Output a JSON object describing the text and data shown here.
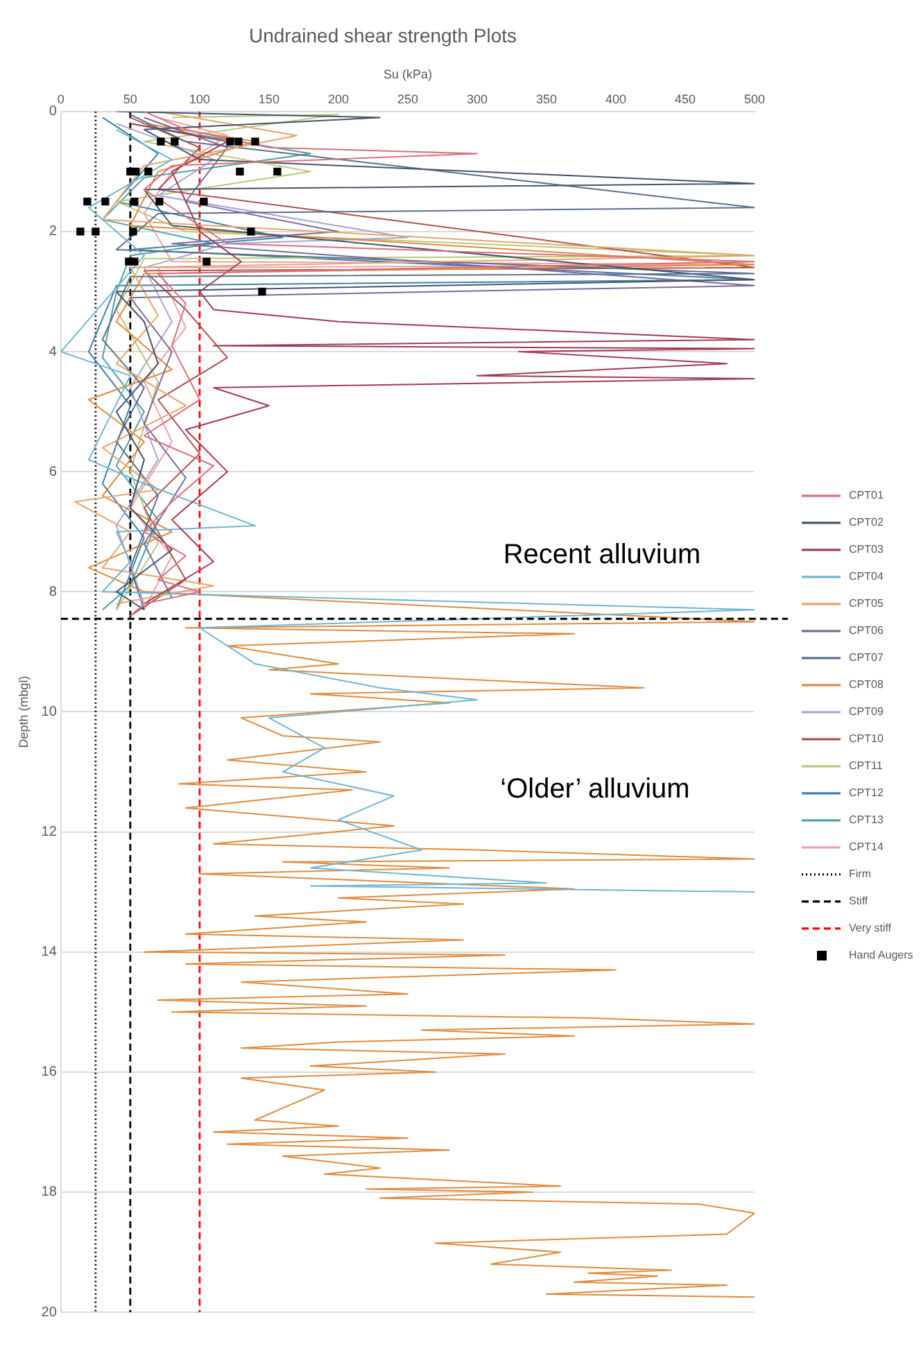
{
  "chart_data": {
    "type": "line",
    "title": "Undrained shear strength Plots",
    "xlabel": "Su (kPa)",
    "ylabel": "Depth (mbgl)",
    "xlim": [
      0,
      500
    ],
    "xticks": [
      0,
      50,
      100,
      150,
      200,
      250,
      300,
      350,
      400,
      450,
      500
    ],
    "ylim": [
      20,
      0
    ],
    "yticks": [
      0,
      2,
      4,
      6,
      8,
      10,
      12,
      14,
      16,
      18,
      20
    ],
    "grid": "y",
    "legend": "right",
    "series": [
      {
        "name": "CPT01",
        "color": "#d9707a",
        "x": [
          60,
          90,
          150,
          300,
          80,
          60,
          120,
          500,
          70,
          90,
          80,
          100,
          60,
          110,
          80,
          60,
          90,
          70,
          100,
          60,
          50
        ],
        "values": [
          0,
          0.3,
          0.6,
          0.7,
          0.9,
          1.3,
          2.2,
          2.5,
          2.7,
          3.2,
          3.9,
          4.8,
          5.4,
          5.9,
          6.5,
          7.0,
          7.4,
          7.8,
          8.0,
          8.2,
          8.4
        ]
      },
      {
        "name": "CPT02",
        "color": "#44546a",
        "x": [
          40,
          230,
          60,
          100,
          500,
          60,
          80,
          500,
          40,
          60,
          70,
          40,
          60,
          50,
          80,
          40,
          60
        ],
        "values": [
          0,
          0.1,
          0.3,
          0.8,
          1.2,
          1.3,
          1.9,
          2.8,
          3.0,
          3.5,
          4.2,
          5.0,
          5.8,
          6.6,
          7.3,
          8.0,
          8.3
        ]
      },
      {
        "name": "CPT03",
        "color": "#a23b52",
        "x": [
          50,
          120,
          80,
          100,
          130,
          100,
          110,
          200,
          500,
          110,
          500,
          330,
          480,
          300,
          500,
          110,
          150,
          90,
          120,
          80,
          110,
          60
        ],
        "values": [
          0.2,
          0.5,
          1.0,
          2.0,
          2.5,
          3.0,
          3.3,
          3.5,
          3.8,
          3.9,
          3.95,
          4.0,
          4.2,
          4.4,
          4.45,
          4.6,
          4.9,
          5.3,
          6.0,
          6.8,
          7.5,
          8.2
        ]
      },
      {
        "name": "CPT04",
        "color": "#6fb5d1",
        "x": [
          40,
          80,
          20,
          60,
          30,
          0,
          50,
          20,
          60,
          140,
          40,
          50,
          30,
          500,
          100,
          140,
          230,
          300,
          150,
          190,
          160,
          240,
          200,
          260,
          180,
          350,
          180,
          500
        ],
        "values": [
          0.3,
          0.8,
          1.6,
          2.4,
          3.2,
          4.0,
          4.4,
          5.8,
          6.2,
          6.9,
          7.0,
          7.5,
          8.0,
          8.3,
          8.6,
          9.2,
          9.6,
          9.8,
          10.1,
          10.6,
          11.0,
          11.4,
          11.8,
          12.3,
          12.6,
          12.85,
          12.9,
          13.0
        ]
      },
      {
        "name": "CPT05",
        "color": "#e8a46a",
        "x": [
          70,
          170,
          60,
          30,
          500,
          50,
          70,
          40,
          90,
          30,
          70,
          10,
          50,
          30,
          110,
          40
        ],
        "values": [
          0,
          0.4,
          0.9,
          1.8,
          2.4,
          2.6,
          3.4,
          4.2,
          4.9,
          5.6,
          6.3,
          6.5,
          7.0,
          7.6,
          7.9,
          8.2
        ]
      },
      {
        "name": "CPT06",
        "color": "#7b6a9a",
        "x": [
          60,
          120,
          90,
          200,
          80,
          500,
          50,
          80,
          60,
          90,
          60,
          80
        ],
        "values": [
          0.1,
          0.6,
          1.5,
          2.0,
          2.2,
          2.9,
          3.1,
          4.0,
          5.2,
          6.1,
          7.2,
          8.1
        ]
      },
      {
        "name": "CPT07",
        "color": "#5a6e8c",
        "x": [
          50,
          90,
          500,
          70,
          40,
          500,
          50,
          30,
          60,
          40,
          70,
          50,
          60
        ],
        "values": [
          0.05,
          0.5,
          1.6,
          1.7,
          2.3,
          2.7,
          2.75,
          3.8,
          4.6,
          5.5,
          6.4,
          7.6,
          8.3
        ]
      },
      {
        "name": "CPT08",
        "color": "#e08a3c",
        "x": [
          60,
          140,
          70,
          50,
          500,
          60,
          40,
          80,
          20,
          60,
          30,
          80,
          20,
          60,
          500,
          90,
          370,
          120,
          200,
          150,
          420,
          180,
          280,
          130,
          160,
          230,
          120,
          220,
          85,
          210,
          90,
          240,
          110,
          300,
          500,
          160,
          280,
          100,
          370,
          200,
          290,
          140,
          220,
          90,
          290,
          60,
          320,
          90,
          400,
          130,
          250,
          70,
          220,
          80,
          380,
          500,
          260,
          370,
          200,
          130,
          320,
          180,
          270,
          130,
          190,
          160,
          140,
          200,
          110,
          250,
          120,
          280,
          160,
          230,
          190,
          360,
          220,
          340,
          230,
          460,
          500,
          480,
          270,
          360,
          310,
          440,
          380,
          430,
          370,
          480,
          350,
          500
        ],
        "values": [
          0.2,
          0.5,
          1.0,
          1.9,
          2.55,
          2.7,
          3.5,
          4.3,
          4.8,
          5.5,
          6.4,
          7.0,
          7.6,
          8.0,
          8.5,
          8.6,
          8.7,
          8.9,
          9.2,
          9.3,
          9.6,
          9.7,
          9.85,
          10.1,
          10.4,
          10.5,
          10.8,
          11.0,
          11.2,
          11.3,
          11.6,
          11.9,
          12.2,
          12.3,
          12.45,
          12.5,
          12.6,
          12.7,
          12.95,
          13.1,
          13.2,
          13.4,
          13.5,
          13.7,
          13.8,
          14.0,
          14.05,
          14.2,
          14.3,
          14.5,
          14.7,
          14.8,
          14.9,
          15.0,
          15.1,
          15.2,
          15.3,
          15.4,
          15.5,
          15.6,
          15.7,
          15.9,
          16.0,
          16.1,
          16.3,
          16.6,
          16.8,
          16.9,
          17.0,
          17.1,
          17.2,
          17.3,
          17.4,
          17.6,
          17.7,
          17.9,
          17.95,
          18.0,
          18.1,
          18.2,
          18.35,
          18.7,
          18.85,
          19.0,
          19.2,
          19.3,
          19.35,
          19.4,
          19.5,
          19.55,
          19.7,
          19.75
        ]
      },
      {
        "name": "CPT09",
        "color": "#a9a4d4",
        "x": [
          40,
          110,
          70,
          250,
          120,
          60,
          80,
          50,
          70,
          40,
          60
        ],
        "values": [
          0.2,
          0.8,
          1.4,
          2.1,
          2.2,
          2.6,
          3.5,
          4.6,
          5.8,
          6.9,
          8.2
        ]
      },
      {
        "name": "CPT10",
        "color": "#b0504e",
        "x": [
          50,
          100,
          70,
          500,
          60,
          90,
          120,
          70,
          100,
          60,
          90,
          50
        ],
        "values": [
          0.1,
          0.6,
          1.3,
          2.6,
          2.65,
          3.3,
          4.1,
          4.8,
          5.7,
          6.6,
          7.8,
          8.4
        ]
      },
      {
        "name": "CPT11",
        "color": "#b7c87a",
        "x": [
          80,
          200,
          60,
          180,
          40,
          90,
          500,
          60,
          40,
          70,
          50,
          70,
          40
        ],
        "values": [
          0.1,
          0.05,
          0.5,
          1.0,
          1.5,
          2.0,
          2.4,
          2.45,
          3.3,
          4.5,
          6.0,
          7.2,
          8.3
        ]
      },
      {
        "name": "CPT12",
        "color": "#3c7fae",
        "x": [
          30,
          70,
          40,
          160,
          50,
          500,
          40,
          20,
          50,
          30,
          60,
          40
        ],
        "values": [
          0.1,
          0.7,
          1.5,
          2.1,
          2.3,
          2.8,
          2.9,
          4.0,
          4.9,
          6.2,
          7.1,
          8.3
        ]
      },
      {
        "name": "CPT13",
        "color": "#4aa3a0",
        "x": [
          50,
          180,
          60,
          30,
          110,
          50,
          40,
          30,
          60,
          40,
          70,
          50,
          30
        ],
        "values": [
          0.2,
          0.7,
          1.1,
          1.8,
          2.2,
          2.4,
          3.0,
          4.1,
          5.0,
          5.9,
          6.8,
          7.9,
          8.3
        ]
      },
      {
        "name": "CPT14",
        "color": "#f0a0a8",
        "x": [
          70,
          120,
          80,
          60,
          80,
          500,
          70,
          90,
          60,
          80,
          50,
          80,
          60
        ],
        "values": [
          0.1,
          0.4,
          1.0,
          1.7,
          2.5,
          2.55,
          2.6,
          3.6,
          4.5,
          5.5,
          6.6,
          7.4,
          8.3
        ]
      },
      {
        "name": "Firm",
        "color": "#000000",
        "line_style": "dotted",
        "x": [
          25,
          25
        ],
        "values": [
          0,
          20
        ]
      },
      {
        "name": "Stiff",
        "color": "#000000",
        "line_style": "dashed",
        "x": [
          50,
          50
        ],
        "values": [
          0,
          20
        ]
      },
      {
        "name": "Very stiff",
        "color": "#ff0000",
        "line_style": "dashed",
        "x": [
          100,
          100
        ],
        "values": [
          0,
          20
        ]
      },
      {
        "name": "Hand Augers",
        "type": "scatter",
        "marker": "square",
        "color": "#000000",
        "x": [
          72,
          82,
          122,
          128,
          140,
          50,
          54,
          63,
          129,
          156,
          19,
          32,
          53,
          71,
          103,
          14,
          25,
          52,
          137,
          49,
          53,
          105,
          145
        ],
        "values": [
          0.5,
          0.5,
          0.5,
          0.5,
          0.5,
          1.0,
          1.0,
          1.0,
          1.0,
          1.0,
          1.5,
          1.5,
          1.5,
          1.5,
          1.5,
          2.0,
          2.0,
          2.0,
          2.0,
          2.5,
          2.5,
          2.5,
          3.0
        ]
      }
    ],
    "ref_lines": [
      {
        "axis": "y",
        "value": 8.45,
        "color": "#000000",
        "line_style": "dashed"
      }
    ],
    "annotations": [
      "Recent alluvium",
      "‘Older’ alluvium"
    ]
  }
}
